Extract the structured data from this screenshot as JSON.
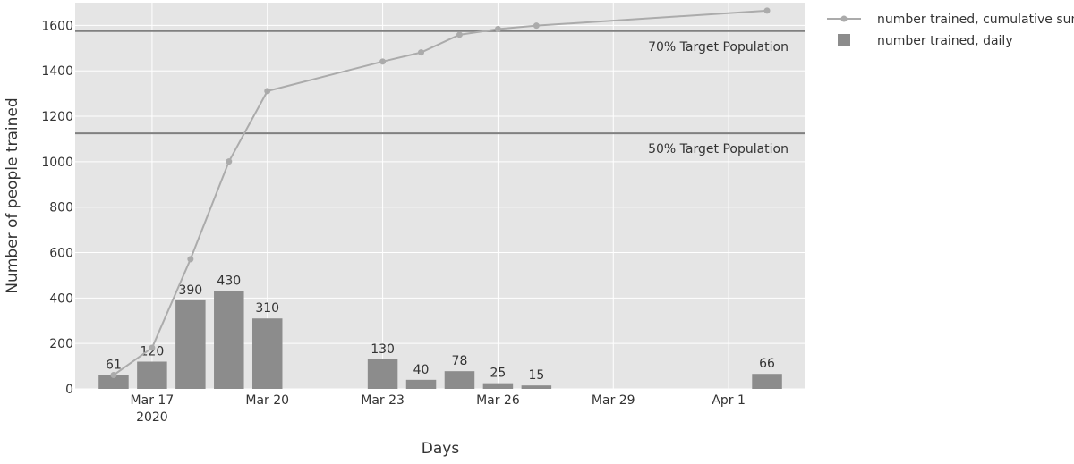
{
  "chart_data": {
    "type": "bar",
    "xlabel": "Days",
    "ylabel": "Number of people trained",
    "ylim": [
      0,
      1700
    ],
    "yticks": [
      0,
      200,
      400,
      600,
      800,
      1000,
      1200,
      1400,
      1600
    ],
    "xlim": [
      "2020-03-15",
      "2020-04-03"
    ],
    "xticks": [
      {
        "date": "2020-03-17",
        "label": "Mar 17",
        "sublabel": "2020"
      },
      {
        "date": "2020-03-20",
        "label": "Mar 20",
        "sublabel": ""
      },
      {
        "date": "2020-03-23",
        "label": "Mar 23",
        "sublabel": ""
      },
      {
        "date": "2020-03-26",
        "label": "Mar 26",
        "sublabel": ""
      },
      {
        "date": "2020-03-29",
        "label": "Mar 29",
        "sublabel": ""
      },
      {
        "date": "2020-04-01",
        "label": "Apr 1",
        "sublabel": ""
      }
    ],
    "grid": true,
    "legend_position": "top-right",
    "series": [
      {
        "name": "number trained, cumulative sum",
        "type": "line",
        "color": "#ababab",
        "x": [
          "2020-03-16",
          "2020-03-17",
          "2020-03-18",
          "2020-03-19",
          "2020-03-20",
          "2020-03-23",
          "2020-03-24",
          "2020-03-25",
          "2020-03-26",
          "2020-03-27",
          "2020-04-02"
        ],
        "y": [
          61,
          181,
          571,
          1001,
          1311,
          1441,
          1481,
          1559,
          1584,
          1599,
          1665
        ]
      },
      {
        "name": "number trained, daily",
        "type": "bar",
        "color": "#8c8c8c",
        "x": [
          "2020-03-16",
          "2020-03-17",
          "2020-03-18",
          "2020-03-19",
          "2020-03-20",
          "2020-03-23",
          "2020-03-24",
          "2020-03-25",
          "2020-03-26",
          "2020-03-27",
          "2020-04-02"
        ],
        "y": [
          61,
          120,
          390,
          430,
          310,
          130,
          40,
          78,
          25,
          15,
          66
        ],
        "labels": [
          "61",
          "120",
          "390",
          "430",
          "310",
          "130",
          "40",
          "78",
          "25",
          "15",
          "66"
        ]
      }
    ],
    "reference_lines": [
      {
        "y": 1575,
        "label": "70% Target Population"
      },
      {
        "y": 1125,
        "label": "50% Target Population"
      }
    ]
  },
  "colors": {
    "plot_background": "#e5e5e5",
    "gridline": "#ffffff",
    "reference_line": "#808080",
    "bar": "#8c8c8c",
    "line": "#ababab"
  }
}
